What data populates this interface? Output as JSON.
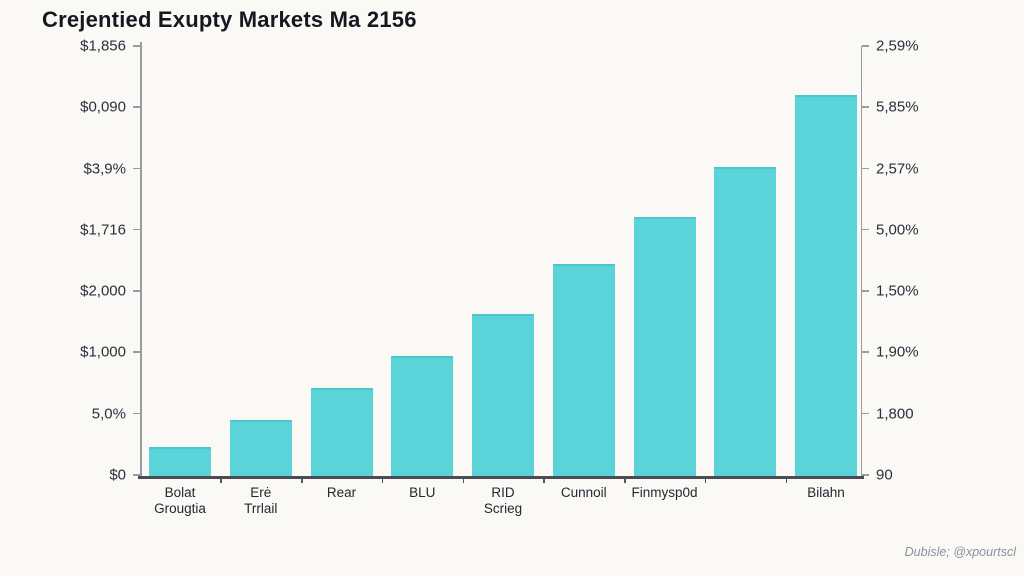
{
  "chart": {
    "title": "Crejentied Exupty Markets Ma 2156",
    "attribution": "Dubisle; @xpourtscl",
    "accent_color": "#5ad4d8",
    "background_color": "#faf9f6"
  },
  "chart_data": {
    "type": "bar",
    "title": "Crejentied Exupty Markets Ma 2156",
    "categories": [
      "Bolat\nGrougtia",
      "Erė\nTrrlail",
      "Rear",
      "BLU",
      "RID\nScrieg",
      "Cunnoil",
      "Finmysp0d",
      "",
      "Bilahn"
    ],
    "values_pct_of_plot_height": [
      6.2,
      12.4,
      19.7,
      27.1,
      36.7,
      48.2,
      59.0,
      70.4,
      87.0
    ],
    "left_axis_ticks": [
      "$1,856",
      "$0,090",
      "$3,9%",
      "$1,716",
      "$2,000",
      "$1,000",
      "5,0%",
      "$0"
    ],
    "right_axis_ticks": [
      "2,59%",
      "5,85%",
      "2,57%",
      "5,00%",
      "1,50%",
      "1,90%",
      "1,800",
      "90"
    ],
    "bar_color": "#5ad4d8",
    "xlabel": "",
    "ylabel": "",
    "legend": null,
    "grid": false,
    "layout": "dual-y-axis, bars unlabeled on eighth position"
  }
}
